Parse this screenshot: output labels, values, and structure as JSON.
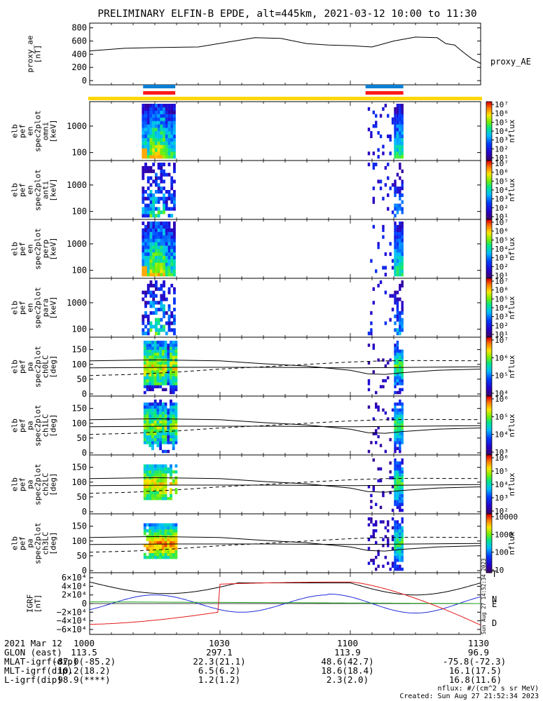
{
  "title": "PRELIMINARY ELFIN-B EPDE, alt=445km, 2021-03-12 10:00 to 11:30",
  "chart_data": [
    {
      "type": "line",
      "name": "proxy_ae",
      "ylabel_lines": [
        "proxy_ae",
        "[nT]"
      ],
      "right_label": "proxy_AE",
      "y_ticks": [
        "800",
        "600",
        "400",
        "200",
        "0"
      ],
      "ylim": [
        0,
        850
      ],
      "x_minutes": [
        0,
        8,
        15,
        25,
        38,
        44,
        50,
        55,
        60,
        65,
        70,
        75,
        80,
        82,
        84,
        86,
        88,
        90
      ],
      "values": [
        450,
        490,
        500,
        510,
        650,
        640,
        560,
        540,
        530,
        510,
        600,
        660,
        650,
        560,
        540,
        430,
        330,
        260
      ]
    },
    {
      "type": "bar",
      "name": "data-quality-bars",
      "intervals_minutes": [
        [
          12.3,
          19.7
        ],
        [
          63.5,
          72.2
        ]
      ],
      "colors": {
        "top": "#0a7fd6",
        "bottom": "#ff1a1a",
        "strip": "#ffd700"
      }
    },
    {
      "type": "heatmap",
      "name": "energy-omni",
      "ylabel_lines": [
        "elb",
        "pef",
        "en",
        "spec2plot",
        "omni",
        "[keV]"
      ],
      "y_ticks": [
        "1000",
        "100"
      ],
      "colorbar_ticks": [
        "10⁷",
        "10⁶",
        "10⁵",
        "10⁴",
        "10³",
        "10²",
        "10¹"
      ],
      "colorbar_label": "nflux"
    },
    {
      "type": "heatmap",
      "name": "energy-anti",
      "ylabel_lines": [
        "elb",
        "pef",
        "en",
        "spec2plot",
        "anti",
        "[keV]"
      ],
      "y_ticks": [
        "1000",
        "100"
      ],
      "colorbar_ticks": [
        "10⁷",
        "10⁶",
        "10⁵",
        "10⁴",
        "10³",
        "10²",
        "10¹"
      ],
      "colorbar_label": "nflux"
    },
    {
      "type": "heatmap",
      "name": "energy-perp",
      "ylabel_lines": [
        "elb",
        "pef",
        "en",
        "spec2plot",
        "perp",
        "[keV]"
      ],
      "y_ticks": [
        "1000",
        "100"
      ],
      "colorbar_ticks": [
        "10⁷",
        "10⁶",
        "10⁵",
        "10⁴",
        "10³",
        "10²",
        "10¹"
      ],
      "colorbar_label": "nflux"
    },
    {
      "type": "heatmap",
      "name": "energy-para",
      "ylabel_lines": [
        "elb",
        "pef",
        "en",
        "spec2plot",
        "para",
        "[keV]"
      ],
      "y_ticks": [
        "1000",
        "100"
      ],
      "colorbar_ticks": [
        "10⁷",
        "10⁶",
        "10⁵",
        "10⁴",
        "10³",
        "10²",
        "10¹"
      ],
      "colorbar_label": "nflux"
    },
    {
      "type": "heatmap",
      "name": "pitch-ch0LC",
      "ylabel_lines": [
        "elb",
        "pef",
        "pa",
        "spec2plot",
        "ch0LC",
        "[deg]"
      ],
      "y_ticks": [
        "150",
        "100",
        "50",
        "0"
      ],
      "colorbar_ticks": [
        "10⁷",
        "10⁶",
        "10⁵",
        "10⁴"
      ],
      "colorbar_label": "nflux"
    },
    {
      "type": "heatmap",
      "name": "pitch-ch1LC",
      "ylabel_lines": [
        "elb",
        "pef",
        "pa",
        "spec2plot",
        "ch1LC",
        "[deg]"
      ],
      "y_ticks": [
        "150",
        "100",
        "50",
        "0"
      ],
      "colorbar_ticks": [
        "10⁶",
        "10⁵",
        "10⁴",
        "10³"
      ],
      "colorbar_label": "nflux"
    },
    {
      "type": "heatmap",
      "name": "pitch-ch2LC",
      "ylabel_lines": [
        "elb",
        "pef",
        "pa",
        "spec2plot",
        "ch2LC",
        "[deg]"
      ],
      "y_ticks": [
        "150",
        "100",
        "50",
        "0"
      ],
      "colorbar_ticks": [
        "10⁶",
        "10⁵",
        "10⁴",
        "10³",
        "10²"
      ],
      "colorbar_label": "nflux"
    },
    {
      "type": "heatmap",
      "name": "pitch-ch3LC",
      "ylabel_lines": [
        "elb",
        "pef",
        "pa",
        "spec2plot",
        "ch3LC",
        "[deg]"
      ],
      "y_ticks": [
        "150",
        "100",
        "50",
        "0"
      ],
      "colorbar_ticks": [
        "10000",
        "1000",
        "100",
        "10"
      ],
      "colorbar_label": "nflux"
    },
    {
      "type": "line",
      "name": "igrf",
      "ylabel_lines": [
        "IGRF",
        "[nT]"
      ],
      "y_ticks": [
        "6×10⁴",
        "4×10⁴",
        "2×10⁴",
        "0",
        "−2×10⁴",
        "−4×10⁴",
        "−6×10⁴"
      ],
      "ylim": [
        -65000,
        65000
      ],
      "series_labels": {
        "T": "T",
        "N": "N",
        "E": "E",
        "D": "D"
      },
      "colors": {
        "T": "#000000",
        "N": "#1f2bd6",
        "E": "#1ea81e",
        "D": "#e31a1a"
      }
    }
  ],
  "side_note": "Sun Aug 27 14:52:34 2023",
  "footer": {
    "rows": [
      {
        "label": "2021 Mar 12",
        "values": [
          "1000",
          "1030",
          "1100",
          "1130"
        ]
      },
      {
        "label": "GLON (east)",
        "values": [
          "113.5",
          "297.1",
          "113.9",
          "96.9"
        ]
      },
      {
        "label": "MLAT-igrf(dip)",
        "values": [
          "-87.0(-85.2)",
          "22.3(21.1)",
          "48.6(42.7)",
          "-75.8(-72.3)"
        ]
      },
      {
        "label": "MLT-igrf(dip)",
        "values": [
          "10.2(18.2)",
          "6.5(6.2)",
          "18.6(18.4)",
          "16.1(17.5)"
        ]
      },
      {
        "label": "L-igrf(dip)",
        "values": [
          "98.9(****)",
          "1.2(1.2)",
          "2.3(2.0)",
          "16.8(11.6)"
        ]
      }
    ],
    "units_note": "nflux: #/(cm^2 s sr MeV)",
    "created": "Created: Sun Aug 27 21:52:34 2023"
  }
}
